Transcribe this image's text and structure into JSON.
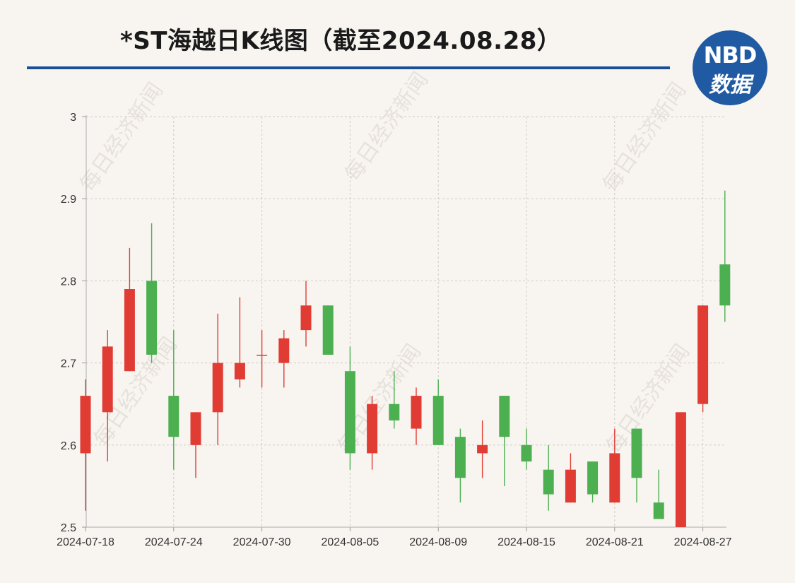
{
  "title": "*ST海越日K线图（截至2024.08.28）",
  "logo": {
    "line1": "NBD",
    "line2": "数据"
  },
  "watermark": "每日经济新闻",
  "colors": {
    "up": "#e03c34",
    "down": "#4caf50",
    "rule": "#1a4f97",
    "logo_bg": "#1f5aa3"
  },
  "chart_data": {
    "type": "candlestick",
    "ylim": [
      2.5,
      3.0
    ],
    "yticks": [
      "2.5",
      "2.6",
      "2.7",
      "2.8",
      "2.9",
      "3"
    ],
    "xtick_labels": [
      {
        "date": "2024-07-18",
        "label": "2024-07-18"
      },
      {
        "date": "2024-07-24",
        "label": "2024-07-24"
      },
      {
        "date": "2024-07-30",
        "label": "2024-07-30"
      },
      {
        "date": "2024-08-05",
        "label": "2024-08-05"
      },
      {
        "date": "2024-08-09",
        "label": "2024-08-09"
      },
      {
        "date": "2024-08-15",
        "label": "2024-08-15"
      },
      {
        "date": "2024-08-21",
        "label": "2024-08-21"
      },
      {
        "date": "2024-08-27",
        "label": "2024-08-27"
      }
    ],
    "grid": true,
    "candles": [
      {
        "date": "2024-07-18",
        "open": 2.59,
        "close": 2.66,
        "high": 2.68,
        "low": 2.52
      },
      {
        "date": "2024-07-19",
        "open": 2.64,
        "close": 2.72,
        "high": 2.74,
        "low": 2.58
      },
      {
        "date": "2024-07-22",
        "open": 2.69,
        "close": 2.79,
        "high": 2.84,
        "low": 2.69
      },
      {
        "date": "2024-07-23",
        "open": 2.8,
        "close": 2.71,
        "high": 2.87,
        "low": 2.7
      },
      {
        "date": "2024-07-24",
        "open": 2.66,
        "close": 2.61,
        "high": 2.74,
        "low": 2.57
      },
      {
        "date": "2024-07-25",
        "open": 2.6,
        "close": 2.64,
        "high": 2.64,
        "low": 2.56
      },
      {
        "date": "2024-07-26",
        "open": 2.64,
        "close": 2.7,
        "high": 2.76,
        "low": 2.6
      },
      {
        "date": "2024-07-29",
        "open": 2.68,
        "close": 2.7,
        "high": 2.78,
        "low": 2.67
      },
      {
        "date": "2024-07-30",
        "open": 2.71,
        "close": 2.71,
        "high": 2.74,
        "low": 2.67
      },
      {
        "date": "2024-07-31",
        "open": 2.7,
        "close": 2.73,
        "high": 2.74,
        "low": 2.67
      },
      {
        "date": "2024-08-01",
        "open": 2.74,
        "close": 2.77,
        "high": 2.8,
        "low": 2.72
      },
      {
        "date": "2024-08-02",
        "open": 2.77,
        "close": 2.71,
        "high": 2.77,
        "low": 2.71
      },
      {
        "date": "2024-08-05",
        "open": 2.69,
        "close": 2.59,
        "high": 2.72,
        "low": 2.57
      },
      {
        "date": "2024-08-06",
        "open": 2.59,
        "close": 2.65,
        "high": 2.66,
        "low": 2.57
      },
      {
        "date": "2024-08-07",
        "open": 2.65,
        "close": 2.63,
        "high": 2.69,
        "low": 2.62
      },
      {
        "date": "2024-08-08",
        "open": 2.62,
        "close": 2.66,
        "high": 2.67,
        "low": 2.6
      },
      {
        "date": "2024-08-09",
        "open": 2.66,
        "close": 2.6,
        "high": 2.68,
        "low": 2.6
      },
      {
        "date": "2024-08-12",
        "open": 2.61,
        "close": 2.56,
        "high": 2.62,
        "low": 2.53
      },
      {
        "date": "2024-08-13",
        "open": 2.59,
        "close": 2.6,
        "high": 2.63,
        "low": 2.56
      },
      {
        "date": "2024-08-14",
        "open": 2.66,
        "close": 2.61,
        "high": 2.66,
        "low": 2.55
      },
      {
        "date": "2024-08-15",
        "open": 2.6,
        "close": 2.58,
        "high": 2.62,
        "low": 2.57
      },
      {
        "date": "2024-08-16",
        "open": 2.57,
        "close": 2.54,
        "high": 2.6,
        "low": 2.52
      },
      {
        "date": "2024-08-19",
        "open": 2.53,
        "close": 2.57,
        "high": 2.59,
        "low": 2.53
      },
      {
        "date": "2024-08-20",
        "open": 2.58,
        "close": 2.54,
        "high": 2.58,
        "low": 2.53
      },
      {
        "date": "2024-08-21",
        "open": 2.53,
        "close": 2.59,
        "high": 2.62,
        "low": 2.53
      },
      {
        "date": "2024-08-22",
        "open": 2.62,
        "close": 2.56,
        "high": 2.62,
        "low": 2.53
      },
      {
        "date": "2024-08-23",
        "open": 2.53,
        "close": 2.51,
        "high": 2.57,
        "low": 2.51
      },
      {
        "date": "2024-08-26",
        "open": 2.5,
        "close": 2.64,
        "high": 2.64,
        "low": 2.5
      },
      {
        "date": "2024-08-27",
        "open": 2.65,
        "close": 2.77,
        "high": 2.77,
        "low": 2.64
      },
      {
        "date": "2024-08-28",
        "open": 2.82,
        "close": 2.77,
        "high": 2.91,
        "low": 2.75
      }
    ]
  }
}
